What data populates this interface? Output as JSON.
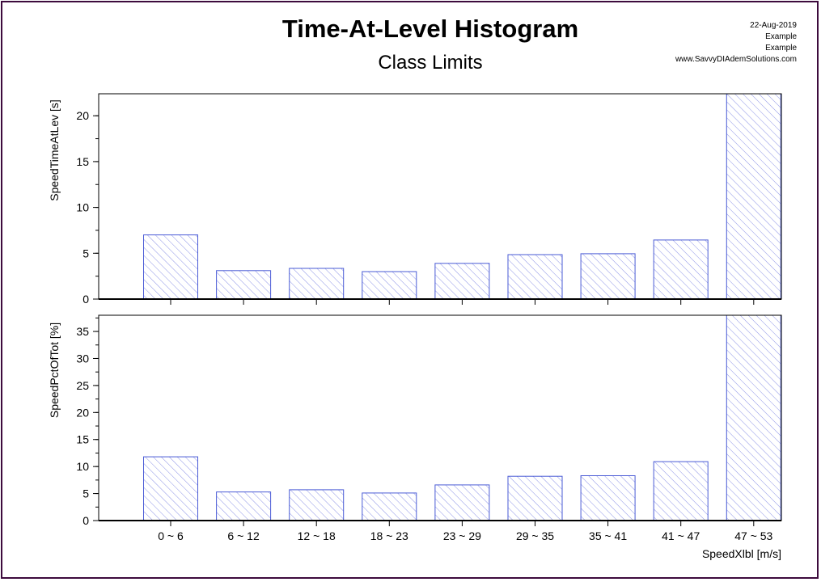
{
  "header": {
    "title": "Time-At-Level Histogram",
    "subtitle": "Class Limits",
    "date": "22-Aug-2019",
    "line2": "Example",
    "line3": "Example",
    "website": "www.SavvyDIAdemSolutions.com"
  },
  "colors": {
    "bar_stroke": "#4a5bd6",
    "hatch": "#8c93e6",
    "frame": "#3d0b3d"
  },
  "chart_data": [
    {
      "type": "bar",
      "title": "Time-At-Level Histogram",
      "subtitle": "Class Limits",
      "categories": [
        "0 ~ 6",
        "6 ~ 12",
        "12 ~ 18",
        "18 ~ 23",
        "23 ~ 29",
        "29 ~ 35",
        "35 ~ 41",
        "41 ~ 47",
        "47 ~ 53"
      ],
      "values": [
        7.0,
        3.1,
        3.35,
        3.0,
        3.9,
        4.85,
        4.95,
        6.45,
        22.4
      ],
      "ylabel": "SpeedTimeAtLev [s]",
      "xlabel": "",
      "ylim": [
        0,
        22.4
      ],
      "yticks": [
        0,
        5,
        10,
        15,
        20
      ],
      "grid": false
    },
    {
      "type": "bar",
      "categories": [
        "0 ~ 6",
        "6 ~ 12",
        "12 ~ 18",
        "18 ~ 23",
        "23 ~ 29",
        "29 ~ 35",
        "35 ~ 41",
        "41 ~ 47",
        "47 ~ 53"
      ],
      "values": [
        11.8,
        5.3,
        5.7,
        5.1,
        6.6,
        8.2,
        8.3,
        10.9,
        38.0
      ],
      "ylabel": "SpeedPctOfTot [%]",
      "xlabel": "SpeedXlbl [m/s]",
      "ylim": [
        0,
        38
      ],
      "yticks": [
        0,
        5,
        10,
        15,
        20,
        25,
        30,
        35
      ],
      "grid": false
    }
  ]
}
